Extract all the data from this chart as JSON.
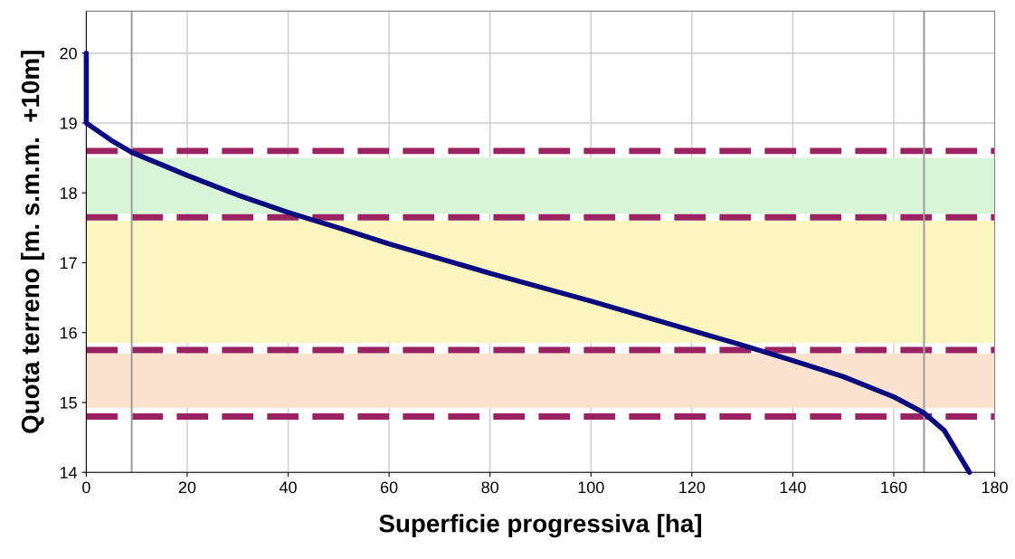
{
  "chart_data": {
    "type": "line",
    "xlabel": "Superficie progressiva [ha]",
    "ylabel": "Quota terreno [m. s.m.m.  +10m]",
    "series": [
      {
        "color": "#0a0a80",
        "x": [
          0,
          0,
          5,
          9,
          20,
          30,
          40,
          50,
          60,
          80,
          100,
          120,
          130,
          140,
          150,
          160,
          166,
          170,
          175
        ],
        "values": [
          20,
          19.0,
          18.75,
          18.58,
          18.25,
          17.97,
          17.72,
          17.5,
          17.27,
          16.85,
          16.45,
          16.03,
          15.82,
          15.6,
          15.37,
          15.08,
          14.85,
          14.6,
          14.0
        ]
      }
    ],
    "xlim": [
      0,
      180
    ],
    "xticks": [
      0,
      20,
      40,
      60,
      80,
      100,
      120,
      140,
      160,
      180
    ],
    "ylim": [
      14,
      20.6
    ],
    "yticks": [
      14,
      15,
      16,
      17,
      18,
      19,
      20
    ],
    "grid": true,
    "marker": "none",
    "line_style": "solid",
    "bands": [
      {
        "axis": "y",
        "from": 17.7,
        "to": 18.5,
        "color": "#d8f5d8"
      },
      {
        "axis": "y",
        "from": 15.85,
        "to": 17.6,
        "color": "#fbf6c0"
      },
      {
        "axis": "y",
        "from": 14.92,
        "to": 15.7,
        "color": "#fbe3cf"
      }
    ],
    "ref_lines": [
      {
        "axis": "y",
        "value": 18.6,
        "color": "#9b2362",
        "line_style": "dashed"
      },
      {
        "axis": "y",
        "value": 17.65,
        "color": "#9b2362",
        "line_style": "dashed"
      },
      {
        "axis": "y",
        "value": 15.75,
        "color": "#9b2362",
        "line_style": "dashed"
      },
      {
        "axis": "y",
        "value": 14.8,
        "color": "#9b2362",
        "line_style": "dashed"
      },
      {
        "axis": "x",
        "value": 9,
        "color": "#a0a0a0",
        "line_style": "solid"
      },
      {
        "axis": "x",
        "value": 166,
        "color": "#a0a0a0",
        "line_style": "solid"
      }
    ]
  }
}
